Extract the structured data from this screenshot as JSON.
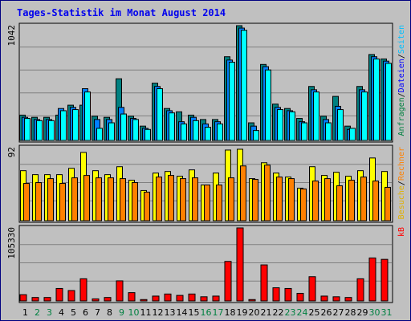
{
  "title": "Tages-Statistik im Monat August 2014",
  "colors": {
    "frame_border": "#000080",
    "background": "#c0c0c0",
    "title": "#0000ee",
    "normal_day": "#000000",
    "weekend_day": "#008040",
    "hits": "#008080",
    "files": "#0080ff",
    "pages": "#00ffff",
    "visits": "#ffff00",
    "sites": "#ff8000",
    "kbytes": "#ff0000"
  },
  "legend": {
    "top": [
      {
        "text": "Anfragen",
        "color": "#008040"
      },
      {
        "text": "/",
        "color": "#000000"
      },
      {
        "text": "Dateien",
        "color": "#0000ff"
      },
      {
        "text": "/",
        "color": "#000000"
      },
      {
        "text": "Seiten",
        "color": "#00c0ff"
      }
    ],
    "middle": [
      {
        "text": "Besuche",
        "color": "#e0b000"
      },
      {
        "text": "/",
        "color": "#000000"
      },
      {
        "text": "Rechner",
        "color": "#ff8000"
      }
    ],
    "bottom": [
      {
        "text": "kB",
        "color": "#ff0000"
      }
    ]
  },
  "chart_data": {
    "type": "bar",
    "title": "Tages-Statistik im Monat August 2014",
    "days": [
      "1",
      "2",
      "3",
      "4",
      "5",
      "6",
      "7",
      "8",
      "9",
      "10",
      "11",
      "12",
      "13",
      "14",
      "15",
      "16",
      "17",
      "18",
      "19",
      "20",
      "21",
      "22",
      "23",
      "24",
      "25",
      "26",
      "27",
      "28",
      "29",
      "30",
      "31"
    ],
    "weekend_days": [
      "2",
      "3",
      "9",
      "10",
      "16",
      "17",
      "23",
      "24",
      "30",
      "31"
    ],
    "panels": [
      {
        "name": "requests",
        "ymax_label": "1042",
        "ylim": [
          0,
          1042
        ],
        "series": [
          {
            "name": "Anfragen",
            "color": "#008080",
            "values": [
              230,
              210,
              210,
              230,
              320,
              320,
              220,
              210,
              560,
              220,
              130,
              520,
              290,
              260,
              230,
              190,
              190,
              760,
              1042,
              160,
              690,
              330,
              290,
              200,
              490,
              220,
              400,
              130,
              490,
              780,
              740
            ]
          },
          {
            "name": "Dateien",
            "color": "#0080ff",
            "values": [
              210,
              190,
              190,
              290,
              300,
              470,
              190,
              190,
              300,
              200,
              110,
              490,
              270,
              170,
              210,
              150,
              170,
              730,
              1020,
              130,
              670,
              300,
              270,
              170,
              460,
              190,
              310,
              100,
              460,
              760,
              720
            ]
          },
          {
            "name": "Seiten",
            "color": "#00ffff",
            "values": [
              200,
              180,
              180,
              270,
              280,
              440,
              110,
              160,
              240,
              190,
              100,
              470,
              250,
              150,
              180,
              120,
              150,
              710,
              1000,
              90,
              640,
              280,
              260,
              160,
              440,
              160,
              280,
              110,
              440,
              740,
              700
            ]
          }
        ]
      },
      {
        "name": "visits",
        "ymax_label": "92",
        "ylim": [
          0,
          92
        ],
        "series": [
          {
            "name": "Besuche",
            "color": "#ffff00",
            "values": [
              63,
              58,
              58,
              58,
              66,
              86,
              63,
              58,
              68,
              51,
              38,
              60,
              62,
              56,
              64,
              45,
              60,
              89,
              90,
              53,
              73,
              60,
              55,
              41,
              68,
              57,
              61,
              56,
              63,
              79,
              62
            ]
          },
          {
            "name": "Rechner",
            "color": "#ff8000",
            "values": [
              47,
              48,
              53,
              47,
              54,
              57,
              54,
              54,
              53,
              48,
              36,
              55,
              57,
              53,
              54,
              45,
              45,
              54,
              69,
              52,
              70,
              55,
              53,
              40,
              50,
              53,
              44,
              51,
              55,
              50,
              42
            ]
          }
        ]
      },
      {
        "name": "kbytes",
        "ymax_label": "105330",
        "ylim": [
          0,
          105330
        ],
        "series": [
          {
            "name": "kB",
            "color": "#ff0000",
            "values": [
              9000,
              5000,
              5000,
              18000,
              15000,
              32000,
              3000,
              5000,
              29000,
              12000,
              2000,
              7000,
              10000,
              8000,
              10000,
              6000,
              7000,
              57000,
              105330,
              2000,
              52000,
              19000,
              18000,
              11000,
              35000,
              7000,
              6000,
              5000,
              32000,
              62000,
              60000
            ]
          }
        ]
      }
    ]
  }
}
